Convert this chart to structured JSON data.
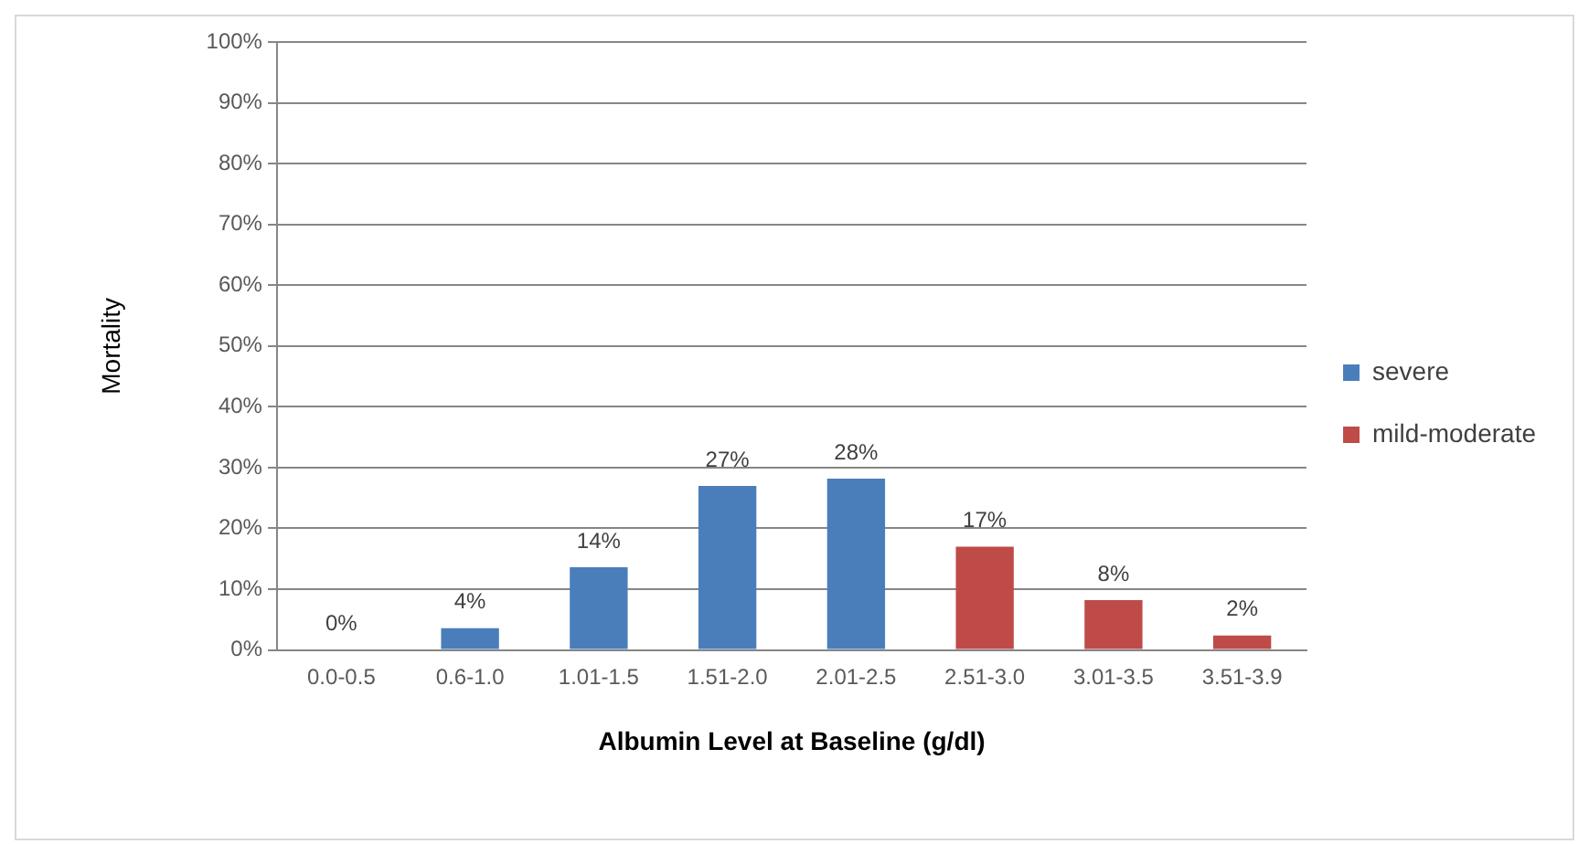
{
  "chart_data": {
    "type": "bar",
    "xlabel": "Albumin Level at Baseline (g/dl)",
    "ylabel": "Mortality",
    "categories": [
      "0.0-0.5",
      "0.6-1.0",
      "1.01-1.5",
      "1.51-2.0",
      "2.01-2.5",
      "2.51-3.0",
      "3.01-3.5",
      "3.51-3.9"
    ],
    "series": [
      {
        "name": "severe",
        "color": "#4a7ebb",
        "values": [
          0,
          3.6,
          13.6,
          27,
          28.2,
          null,
          null,
          null
        ],
        "value_labels": [
          "0%",
          "4%",
          "14%",
          "27%",
          "28%",
          null,
          null,
          null
        ]
      },
      {
        "name": "mild-moderate",
        "color": "#be4b48",
        "values": [
          null,
          null,
          null,
          null,
          null,
          17,
          8.2,
          2.4
        ],
        "value_labels": [
          null,
          null,
          null,
          null,
          null,
          "17%",
          "8%",
          "2%"
        ]
      }
    ],
    "stacked": true,
    "ylim": [
      0,
      100
    ],
    "yticks": [
      {
        "value": 0,
        "label": "0%"
      },
      {
        "value": 10,
        "label": "10%"
      },
      {
        "value": 20,
        "label": "20%"
      },
      {
        "value": 30,
        "label": "30%"
      },
      {
        "value": 40,
        "label": "40%"
      },
      {
        "value": 50,
        "label": "50%"
      },
      {
        "value": 60,
        "label": "60%"
      },
      {
        "value": 70,
        "label": "70%"
      },
      {
        "value": 80,
        "label": "80%"
      },
      {
        "value": 90,
        "label": "90%"
      },
      {
        "value": 100,
        "label": "100%"
      }
    ],
    "grid": "y",
    "legend": "right"
  }
}
